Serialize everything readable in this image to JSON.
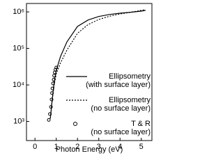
{
  "chart_data": {
    "type": "line",
    "xlabel": "Photon Energy (eV)",
    "xlim": [
      -0.4,
      5.5
    ],
    "xticks": [
      0,
      1,
      2,
      3,
      4,
      5
    ],
    "ylim": [
      300,
      1700000
    ],
    "yscale": "log",
    "yticks": [
      {
        "value": 1000,
        "label": "10³"
      },
      {
        "value": 10000,
        "label": "10⁴"
      },
      {
        "value": 100000,
        "label": "10⁵"
      },
      {
        "value": 1000000,
        "label": "10⁶"
      }
    ],
    "legend": "lower right",
    "series": [
      {
        "name": "Ellipsometry\n(with surface layer)",
        "color": "#000000",
        "style": "solid",
        "x": [
          0.72,
          0.8,
          0.9,
          1.0,
          1.2,
          1.5,
          2.0,
          2.5,
          3.0,
          3.5,
          4.0,
          4.5,
          5.0,
          5.2
        ],
        "values": [
          1200,
          3500,
          12000,
          25000,
          60000,
          150000,
          400000,
          600000,
          750000,
          850000,
          920000,
          980000,
          1050000,
          1100000
        ]
      },
      {
        "name": "Ellipsometry\n(no surface layer)",
        "color": "#000000",
        "style": "dotted",
        "x": [
          0.72,
          0.8,
          0.9,
          1.0,
          1.2,
          1.5,
          2.0,
          2.5,
          3.0,
          3.5,
          4.0,
          4.5,
          5.0,
          5.2
        ],
        "values": [
          1200,
          3200,
          10000,
          20000,
          40000,
          90000,
          260000,
          450000,
          620000,
          760000,
          880000,
          980000,
          1100000,
          1150000
        ]
      },
      {
        "name": "T & R\n(no surface layer)",
        "color": "#000000",
        "style": "markers",
        "x": [
          0.65,
          0.7,
          0.75,
          0.78,
          0.8,
          0.82,
          0.85,
          0.88,
          0.9,
          0.93,
          0.96,
          1.0
        ],
        "values": [
          1100,
          1600,
          2500,
          4000,
          6000,
          8000,
          11000,
          14000,
          18000,
          22000,
          26000,
          30000
        ]
      }
    ]
  }
}
